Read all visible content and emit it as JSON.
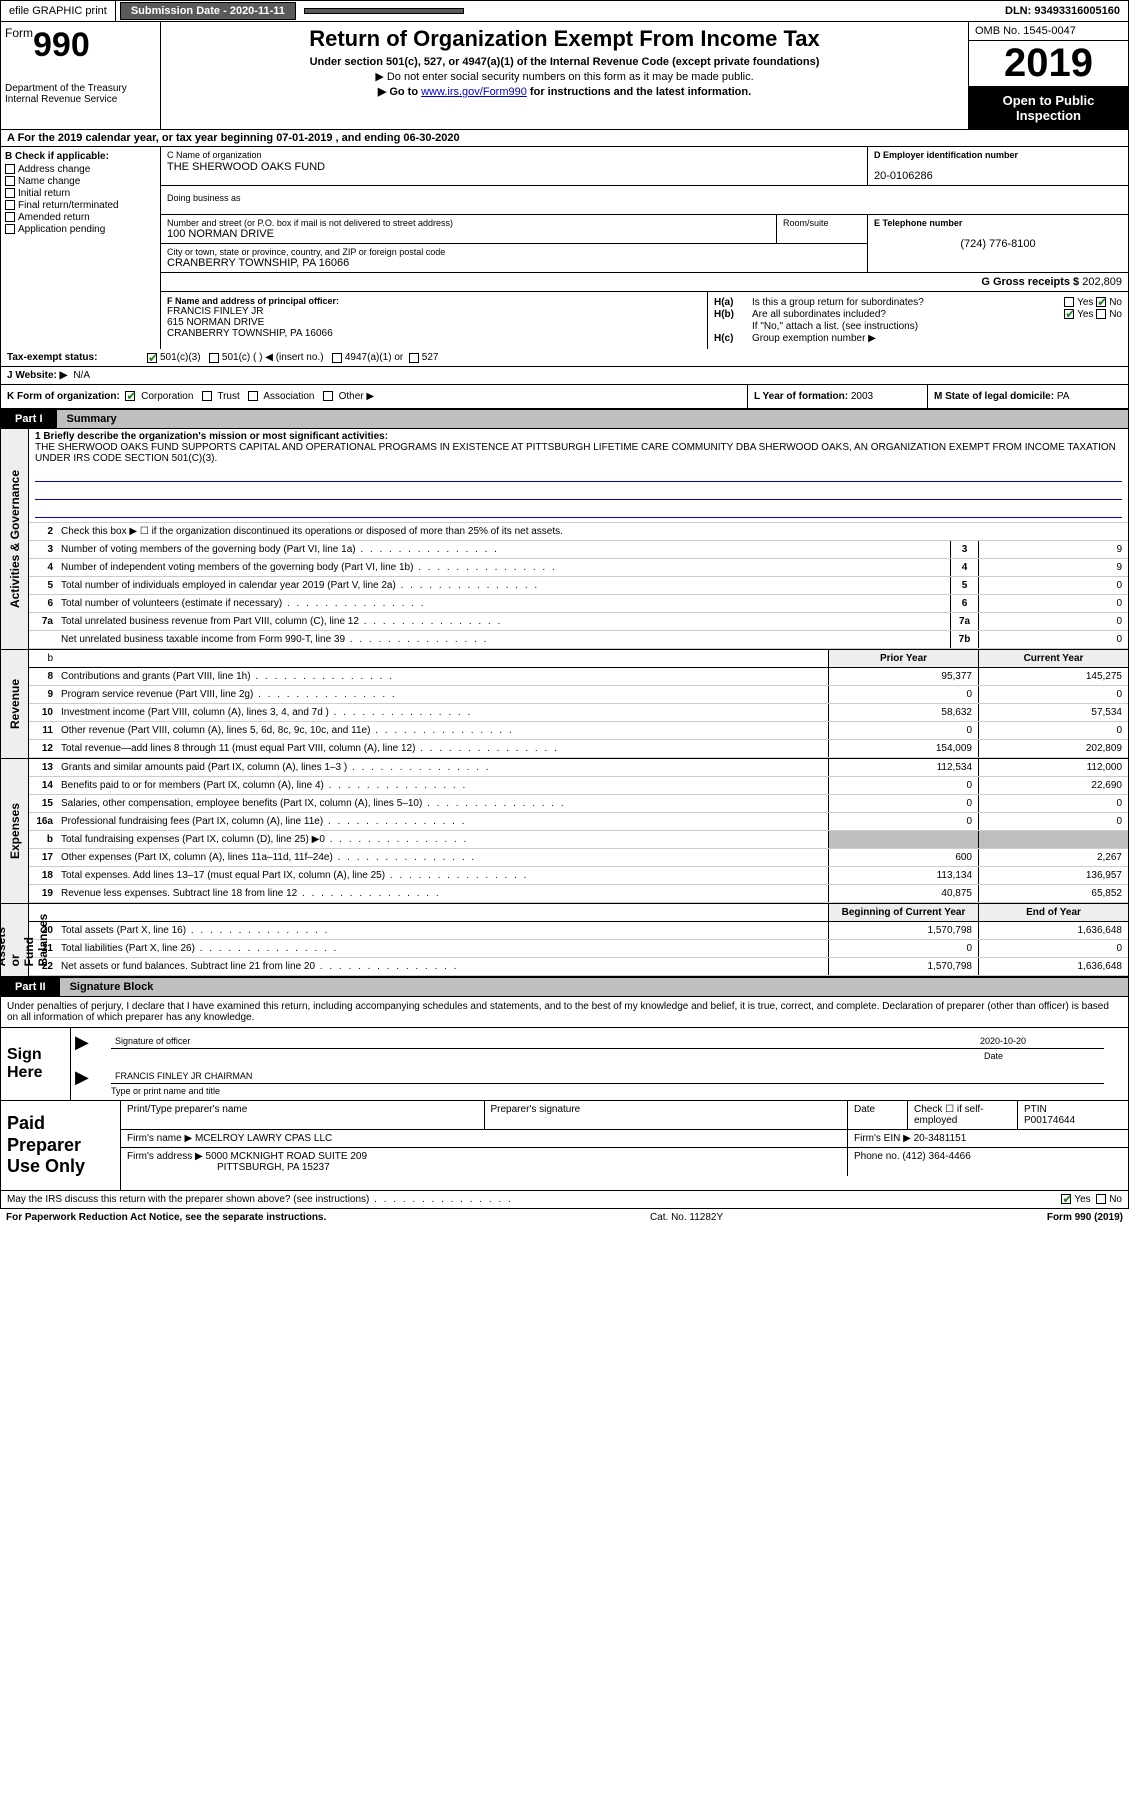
{
  "topbar": {
    "efile_label": "efile GRAPHIC print",
    "submission_label": "Submission Date - 2020-11-11",
    "dln_label": "DLN: 93493316005160"
  },
  "header": {
    "form_word": "Form",
    "form_num": "990",
    "dept": "Department of the Treasury\nInternal Revenue Service",
    "title": "Return of Organization Exempt From Income Tax",
    "sub1": "Under section 501(c), 527, or 4947(a)(1) of the Internal Revenue Code (except private foundations)",
    "sub2": "▶ Do not enter social security numbers on this form as it may be made public.",
    "sub3_pre": "▶ Go to ",
    "sub3_link": "www.irs.gov/Form990",
    "sub3_post": " for instructions and the latest information.",
    "omb": "OMB No. 1545-0047",
    "year": "2019",
    "otp": "Open to Public Inspection"
  },
  "rowA": "A  For the 2019 calendar year, or tax year beginning 07-01-2019     , and ending 06-30-2020",
  "sectionB": {
    "hdr": "B Check if applicable:",
    "opts": [
      "Address change",
      "Name change",
      "Initial return",
      "Final return/terminated",
      "Amended return",
      "Application pending"
    ]
  },
  "sectionC": {
    "name_lbl": "C Name of organization",
    "name": "THE SHERWOOD OAKS FUND",
    "dba_lbl": "Doing business as",
    "street_lbl": "Number and street (or P.O. box if mail is not delivered to street address)",
    "street": "100 NORMAN DRIVE",
    "suite_lbl": "Room/suite",
    "city_lbl": "City or town, state or province, country, and ZIP or foreign postal code",
    "city": "CRANBERRY TOWNSHIP, PA  16066"
  },
  "sectionD": {
    "lbl": "D Employer identification number",
    "val": "20-0106286"
  },
  "sectionE": {
    "lbl": "E Telephone number",
    "val": "(724) 776-8100"
  },
  "sectionG": {
    "lbl": "G Gross receipts $ ",
    "val": "202,809"
  },
  "sectionF": {
    "lbl": "F Name and address of principal officer:",
    "name": "FRANCIS FINLEY JR",
    "addr1": "615 NORMAN DRIVE",
    "addr2": "CRANBERRY TOWNSHIP, PA  16066"
  },
  "sectionH": {
    "a": "Is this a group return for subordinates?",
    "b": "Are all subordinates included?",
    "b_note": "If \"No,\" attach a list. (see instructions)",
    "c": "Group exemption number ▶"
  },
  "rowI": {
    "lbl": "Tax-exempt status:",
    "opts": [
      "501(c)(3)",
      "501(c) (  ) ◀ (insert no.)",
      "4947(a)(1) or",
      "527"
    ]
  },
  "rowJ": {
    "lbl": "J   Website: ▶",
    "val": "N/A"
  },
  "rowK": {
    "lbl": "K Form of organization:",
    "opts": [
      "Corporation",
      "Trust",
      "Association",
      "Other ▶"
    ]
  },
  "rowL": {
    "lbl": "L Year of formation: ",
    "val": "2003"
  },
  "rowM": {
    "lbl": "M State of legal domicile: ",
    "val": "PA"
  },
  "part1": {
    "tag": "Part I",
    "title": "Summary"
  },
  "mission": {
    "lbl": "1  Briefly describe the organization's mission or most significant activities:",
    "text": "THE SHERWOOD OAKS FUND SUPPORTS CAPITAL AND OPERATIONAL PROGRAMS IN EXISTENCE AT PITTSBURGH LIFETIME CARE COMMUNITY DBA SHERWOOD OAKS, AN ORGANIZATION EXEMPT FROM INCOME TAXATION UNDER IRS CODE SECTION 501(C)(3)."
  },
  "activities": {
    "l2": "Check this box ▶ ☐ if the organization discontinued its operations or disposed of more than 25% of its net assets.",
    "rows": [
      {
        "n": "3",
        "d": "Number of voting members of the governing body (Part VI, line 1a)",
        "box": "3",
        "v": "9"
      },
      {
        "n": "4",
        "d": "Number of independent voting members of the governing body (Part VI, line 1b)",
        "box": "4",
        "v": "9"
      },
      {
        "n": "5",
        "d": "Total number of individuals employed in calendar year 2019 (Part V, line 2a)",
        "box": "5",
        "v": "0"
      },
      {
        "n": "6",
        "d": "Total number of volunteers (estimate if necessary)",
        "box": "6",
        "v": "0"
      },
      {
        "n": "7a",
        "d": "Total unrelated business revenue from Part VIII, column (C), line 12",
        "box": "7a",
        "v": "0"
      },
      {
        "n": "",
        "d": "Net unrelated business taxable income from Form 990-T, line 39",
        "box": "7b",
        "v": "0"
      }
    ]
  },
  "col_hdrs": {
    "prior": "Prior Year",
    "current": "Current Year",
    "boy": "Beginning of Current Year",
    "eoy": "End of Year"
  },
  "revenue": [
    {
      "n": "8",
      "d": "Contributions and grants (Part VIII, line 1h)",
      "p": "95,377",
      "c": "145,275"
    },
    {
      "n": "9",
      "d": "Program service revenue (Part VIII, line 2g)",
      "p": "0",
      "c": "0"
    },
    {
      "n": "10",
      "d": "Investment income (Part VIII, column (A), lines 3, 4, and 7d )",
      "p": "58,632",
      "c": "57,534"
    },
    {
      "n": "11",
      "d": "Other revenue (Part VIII, column (A), lines 5, 6d, 8c, 9c, 10c, and 11e)",
      "p": "0",
      "c": "0"
    },
    {
      "n": "12",
      "d": "Total revenue—add lines 8 through 11 (must equal Part VIII, column (A), line 12)",
      "p": "154,009",
      "c": "202,809"
    }
  ],
  "expenses": [
    {
      "n": "13",
      "d": "Grants and similar amounts paid (Part IX, column (A), lines 1–3 )",
      "p": "112,534",
      "c": "112,000"
    },
    {
      "n": "14",
      "d": "Benefits paid to or for members (Part IX, column (A), line 4)",
      "p": "0",
      "c": "22,690"
    },
    {
      "n": "15",
      "d": "Salaries, other compensation, employee benefits (Part IX, column (A), lines 5–10)",
      "p": "0",
      "c": "0"
    },
    {
      "n": "16a",
      "d": "Professional fundraising fees (Part IX, column (A), line 11e)",
      "p": "0",
      "c": "0"
    },
    {
      "n": "b",
      "d": "Total fundraising expenses (Part IX, column (D), line 25) ▶0",
      "p": "",
      "c": "",
      "shade": true
    },
    {
      "n": "17",
      "d": "Other expenses (Part IX, column (A), lines 11a–11d, 11f–24e)",
      "p": "600",
      "c": "2,267"
    },
    {
      "n": "18",
      "d": "Total expenses. Add lines 13–17 (must equal Part IX, column (A), line 25)",
      "p": "113,134",
      "c": "136,957"
    },
    {
      "n": "19",
      "d": "Revenue less expenses. Subtract line 18 from line 12",
      "p": "40,875",
      "c": "65,852"
    }
  ],
  "netassets": [
    {
      "n": "20",
      "d": "Total assets (Part X, line 16)",
      "p": "1,570,798",
      "c": "1,636,648"
    },
    {
      "n": "21",
      "d": "Total liabilities (Part X, line 26)",
      "p": "0",
      "c": "0"
    },
    {
      "n": "22",
      "d": "Net assets or fund balances. Subtract line 21 from line 20",
      "p": "1,570,798",
      "c": "1,636,648"
    }
  ],
  "side_labels": {
    "ag": "Activities & Governance",
    "rev": "Revenue",
    "exp": "Expenses",
    "na": "Net Assets or\nFund Balances"
  },
  "part2": {
    "tag": "Part II",
    "title": "Signature Block"
  },
  "sig": {
    "intro": "Under penalties of perjury, I declare that I have examined this return, including accompanying schedules and statements, and to the best of my knowledge and belief, it is true, correct, and complete. Declaration of preparer (other than officer) is based on all information of which preparer has any knowledge.",
    "sign_here": "Sign Here",
    "sig_officer_lbl": "Signature of officer",
    "date_lbl": "Date",
    "date_val": "2020-10-20",
    "name_title": "FRANCIS FINLEY JR  CHAIRMAN",
    "name_title_lbl": "Type or print name and title"
  },
  "prep": {
    "lbl": "Paid Preparer Use Only",
    "h1": "Print/Type preparer's name",
    "h2": "Preparer's signature",
    "h3": "Date",
    "h4": "Check ☐ if self-employed",
    "h5": "PTIN",
    "ptin": "P00174644",
    "firm_name_lbl": "Firm's name   ▶",
    "firm_name": "MCELROY LAWRY CPAS LLC",
    "firm_ein_lbl": "Firm's EIN ▶",
    "firm_ein": "20-3481151",
    "firm_addr_lbl": "Firm's address ▶",
    "firm_addr1": "5000 MCKNIGHT ROAD SUITE 209",
    "firm_addr2": "PITTSBURGH, PA  15237",
    "phone_lbl": "Phone no.",
    "phone": "(412) 364-4466"
  },
  "discuss": "May the IRS discuss this return with the preparer shown above? (see instructions)",
  "footer": {
    "left": "For Paperwork Reduction Act Notice, see the separate instructions.",
    "mid": "Cat. No. 11282Y",
    "right": "Form 990 (2019)"
  }
}
